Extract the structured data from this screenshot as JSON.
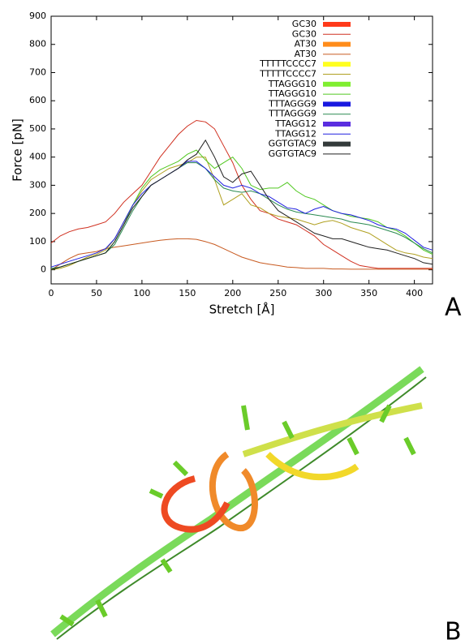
{
  "chart_data": {
    "type": "line",
    "xlabel": "Stretch [Å]",
    "ylabel": "Force [pN]",
    "xlim": [
      0,
      420
    ],
    "ylim": [
      -50,
      900
    ],
    "xticks": [
      0,
      50,
      100,
      150,
      200,
      250,
      300,
      350,
      400
    ],
    "yticks": [
      0,
      100,
      200,
      300,
      400,
      500,
      600,
      700,
      800,
      900
    ],
    "legend": "upper right",
    "x": [
      0,
      10,
      20,
      30,
      40,
      50,
      60,
      70,
      80,
      90,
      100,
      110,
      120,
      130,
      140,
      150,
      160,
      170,
      180,
      190,
      200,
      210,
      220,
      230,
      240,
      250,
      260,
      270,
      280,
      290,
      300,
      310,
      320,
      330,
      340,
      350,
      360,
      370,
      380,
      390,
      400,
      410,
      420
    ],
    "series": [
      {
        "name": "GC30",
        "key_color": "#ff3a1a",
        "color": "#d03020",
        "values": [
          95,
          120,
          135,
          145,
          150,
          160,
          170,
          200,
          240,
          270,
          300,
          350,
          400,
          440,
          480,
          510,
          530,
          525,
          500,
          440,
          380,
          300,
          250,
          210,
          200,
          180,
          170,
          160,
          140,
          120,
          90,
          70,
          50,
          30,
          15,
          10,
          5,
          5,
          5,
          5,
          5,
          5,
          5
        ]
      },
      {
        "name": "AT30",
        "key_color": "#ff8c1a",
        "color": "#c85a20",
        "values": [
          0,
          20,
          40,
          55,
          60,
          65,
          75,
          80,
          85,
          90,
          95,
          100,
          105,
          108,
          110,
          110,
          108,
          100,
          90,
          75,
          60,
          45,
          35,
          25,
          20,
          15,
          10,
          8,
          5,
          5,
          5,
          3,
          3,
          2,
          2,
          2,
          2,
          2,
          2,
          2,
          2,
          2,
          2
        ]
      },
      {
        "name": "TTTTTCCCC7",
        "key_color": "#ffff20",
        "color": "#b0a020",
        "values": [
          0,
          5,
          15,
          30,
          45,
          55,
          70,
          110,
          170,
          230,
          280,
          320,
          340,
          360,
          370,
          380,
          400,
          400,
          320,
          230,
          250,
          270,
          230,
          220,
          200,
          190,
          185,
          180,
          170,
          160,
          170,
          175,
          165,
          150,
          140,
          130,
          110,
          90,
          70,
          60,
          55,
          45,
          40
        ]
      },
      {
        "name": "TTAGGG10",
        "key_color": "#80ee30",
        "color": "#50c820",
        "values": [
          0,
          10,
          20,
          30,
          40,
          50,
          60,
          100,
          160,
          230,
          290,
          330,
          355,
          370,
          385,
          410,
          425,
          390,
          360,
          380,
          400,
          360,
          300,
          285,
          290,
          290,
          310,
          280,
          260,
          250,
          230,
          210,
          200,
          190,
          185,
          180,
          170,
          150,
          140,
          120,
          95,
          70,
          55
        ]
      },
      {
        "name": "TTTAGGG9",
        "key_color": "#1818e0",
        "color": "#2a8a50",
        "values": [
          5,
          10,
          20,
          30,
          40,
          50,
          60,
          90,
          150,
          210,
          260,
          300,
          320,
          340,
          360,
          380,
          380,
          360,
          320,
          290,
          280,
          275,
          280,
          270,
          250,
          230,
          215,
          205,
          200,
          195,
          190,
          185,
          180,
          170,
          165,
          160,
          150,
          140,
          130,
          115,
          95,
          75,
          60
        ]
      },
      {
        "name": "TTAGG12",
        "key_color": "#5a2ee0",
        "color": "#2020e0",
        "values": [
          10,
          20,
          30,
          40,
          50,
          60,
          75,
          110,
          170,
          230,
          270,
          300,
          320,
          340,
          360,
          385,
          385,
          360,
          330,
          300,
          290,
          300,
          290,
          270,
          260,
          240,
          220,
          215,
          200,
          215,
          225,
          210,
          200,
          195,
          185,
          175,
          160,
          150,
          145,
          130,
          105,
          80,
          70
        ]
      },
      {
        "name": "GGTGTAC9",
        "key_color": "#333a3a",
        "color": "#202020",
        "values": [
          0,
          10,
          20,
          30,
          40,
          50,
          60,
          100,
          160,
          220,
          260,
          300,
          320,
          340,
          360,
          390,
          410,
          460,
          400,
          330,
          310,
          340,
          350,
          300,
          250,
          210,
          190,
          170,
          150,
          130,
          120,
          110,
          110,
          100,
          90,
          80,
          75,
          70,
          60,
          50,
          40,
          25,
          20
        ]
      }
    ]
  },
  "panel_labels": [
    "A",
    "B"
  ]
}
